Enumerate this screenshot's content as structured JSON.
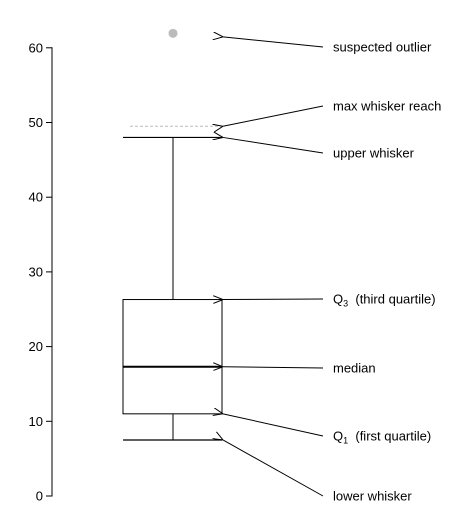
{
  "chart_data": {
    "type": "boxplot",
    "title": "",
    "xlabel": "",
    "ylabel": "",
    "ylim": [
      0,
      62
    ],
    "yticks": [
      0,
      10,
      20,
      30,
      40,
      50,
      60
    ],
    "box": {
      "lower_whisker": 7.5,
      "q1": 11,
      "median": 17.3,
      "q3": 26.3,
      "upper_whisker": 48,
      "max_whisker_reach": 49.5,
      "outliers": [
        62
      ]
    },
    "annotations": [
      {
        "key": "outlier",
        "label": "suspected outlier",
        "target": 62
      },
      {
        "key": "reach",
        "label": "max whisker reach",
        "target": 49.5
      },
      {
        "key": "upper",
        "label": "upper whisker",
        "target": 48
      },
      {
        "key": "q3",
        "label": "Q",
        "sub": "3",
        "suffix": "  (third quartile)",
        "target": 26.3
      },
      {
        "key": "median",
        "label": "median",
        "target": 17.3
      },
      {
        "key": "q1",
        "label": "Q",
        "sub": "1",
        "suffix": "  (first quartile)",
        "target": 11
      },
      {
        "key": "lower",
        "label": "lower whisker",
        "target": 7.5
      }
    ],
    "colors": {
      "lines": "#000000",
      "outlier": "#bbbbbb",
      "reach_line": "#bbbbbb"
    }
  }
}
